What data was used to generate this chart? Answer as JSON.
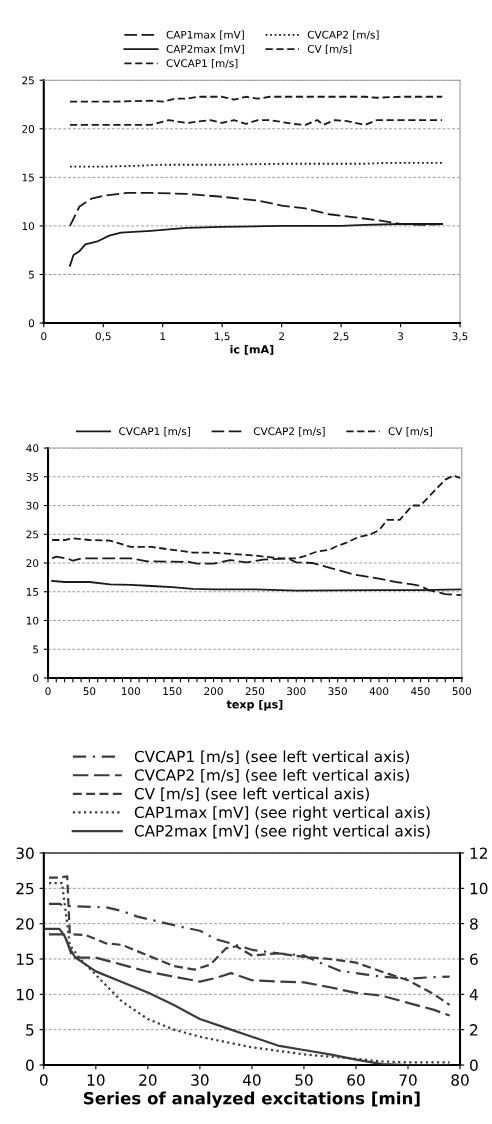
{
  "chart_data": [
    {
      "type": "line",
      "xlabel": "ic [mA]",
      "xlim": [
        0,
        3.5
      ],
      "xticks": [
        0,
        {
          "value": 0.5,
          "label": "0,5"
        },
        1,
        {
          "value": 1.5,
          "label": "1,5"
        },
        2,
        {
          "value": 2.5,
          "label": "2,5"
        },
        3,
        {
          "value": 3.5,
          "label": "3,5"
        }
      ],
      "ylim": [
        0,
        25
      ],
      "yticks": [
        0,
        5,
        10,
        15,
        20,
        25
      ],
      "grid": "y",
      "legend": "top",
      "series": [
        {
          "name": "CAP1max [mV]",
          "color": "#1a1a1a",
          "line_style": "longdash",
          "x": [
            0.22,
            0.3,
            0.4,
            0.5,
            0.7,
            0.9,
            1.2,
            1.5,
            1.8,
            2.0,
            2.2,
            2.4,
            2.6,
            2.8,
            3.0,
            3.2,
            3.35
          ],
          "values": [
            10,
            12,
            12.8,
            13.1,
            13.4,
            13.4,
            13.3,
            13.0,
            12.6,
            12.1,
            11.8,
            11.2,
            10.9,
            10.6,
            10.2,
            10.1,
            10.2
          ]
        },
        {
          "name": "CAP2max [mV]",
          "color": "#1a1a1a",
          "line_style": "solid",
          "x": [
            0.22,
            0.25,
            0.3,
            0.35,
            0.45,
            0.55,
            0.65,
            0.9,
            1.2,
            1.5,
            2.0,
            2.5,
            2.7,
            3.0,
            3.35
          ],
          "values": [
            5.9,
            7,
            7.4,
            8.1,
            8.4,
            9.0,
            9.3,
            9.5,
            9.8,
            9.9,
            10.0,
            10.0,
            10.1,
            10.2,
            10.2
          ]
        },
        {
          "name": "CVCAP1 [m/s]",
          "color": "#1a1a1a",
          "line_style": "dashed",
          "x": [
            0.22,
            0.6,
            0.9,
            1.0,
            1.1,
            1.2,
            1.3,
            1.5,
            1.6,
            1.7,
            1.8,
            1.9,
            2.5,
            2.7,
            2.8,
            3.0,
            3.35
          ],
          "values": [
            22.8,
            22.8,
            22.9,
            22.8,
            23.1,
            23.1,
            23.3,
            23.3,
            23.0,
            23.3,
            23.1,
            23.3,
            23.3,
            23.3,
            23.2,
            23.3,
            23.3
          ]
        },
        {
          "name": "CVCAP2 [m/s]",
          "color": "#1a1a1a",
          "line_style": "dotted",
          "x": [
            0.22,
            0.5,
            0.8,
            1.0,
            1.5,
            2.0,
            2.5,
            2.7,
            2.9,
            3.35
          ],
          "values": [
            16.1,
            16.1,
            16.2,
            16.3,
            16.3,
            16.4,
            16.4,
            16.4,
            16.5,
            16.5
          ]
        },
        {
          "name": "CV [m/s]",
          "color": "#1a1a1a",
          "line_style": "dashed",
          "x": [
            0.22,
            0.7,
            0.9,
            1.05,
            1.2,
            1.4,
            1.5,
            1.6,
            1.7,
            1.8,
            1.9,
            2.1,
            2.2,
            2.3,
            2.35,
            2.45,
            2.55,
            2.7,
            2.8,
            3.2,
            3.35
          ],
          "values": [
            20.4,
            20.4,
            20.4,
            20.9,
            20.6,
            20.9,
            20.6,
            20.9,
            20.5,
            20.9,
            20.9,
            20.5,
            20.4,
            20.9,
            20.4,
            20.9,
            20.8,
            20.4,
            20.9,
            20.9,
            20.9
          ]
        }
      ]
    },
    {
      "type": "line",
      "xlabel": "texp [µs]",
      "xlim": [
        0,
        500
      ],
      "xticks": [
        0,
        {
          "value": 10,
          "label": null
        },
        {
          "value": 20,
          "label": null
        },
        {
          "value": 30,
          "label": null
        },
        {
          "value": 40,
          "label": null
        },
        50,
        {
          "value": 60,
          "label": null
        },
        {
          "value": 70,
          "label": null
        },
        {
          "value": 80,
          "label": null
        },
        {
          "value": 90,
          "label": null
        },
        100,
        {
          "value": 110,
          "label": null
        },
        {
          "value": 120,
          "label": null
        },
        {
          "value": 130,
          "label": null
        },
        {
          "value": 140,
          "label": null
        },
        150,
        {
          "value": 160,
          "label": null
        },
        {
          "value": 170,
          "label": null
        },
        {
          "value": 180,
          "label": null
        },
        {
          "value": 190,
          "label": null
        },
        200,
        {
          "value": 210,
          "label": null
        },
        {
          "value": 220,
          "label": null
        },
        {
          "value": 230,
          "label": null
        },
        {
          "value": 240,
          "label": null
        },
        250,
        {
          "value": 260,
          "label": null
        },
        {
          "value": 270,
          "label": null
        },
        {
          "value": 280,
          "label": null
        },
        {
          "value": 290,
          "label": null
        },
        300,
        {
          "value": 310,
          "label": null
        },
        {
          "value": 320,
          "label": null
        },
        {
          "value": 330,
          "label": null
        },
        {
          "value": 340,
          "label": null
        },
        350,
        {
          "value": 360,
          "label": null
        },
        {
          "value": 370,
          "label": null
        },
        {
          "value": 380,
          "label": null
        },
        {
          "value": 390,
          "label": null
        },
        400,
        {
          "value": 410,
          "label": null
        },
        {
          "value": 420,
          "label": null
        },
        {
          "value": 430,
          "label": null
        },
        {
          "value": 440,
          "label": null
        },
        450,
        {
          "value": 460,
          "label": null
        },
        {
          "value": 470,
          "label": null
        },
        {
          "value": 480,
          "label": null
        },
        {
          "value": 490,
          "label": null
        },
        500
      ],
      "ylim": [
        0,
        40
      ],
      "yticks": [
        0,
        5,
        10,
        15,
        20,
        25,
        30,
        35,
        40
      ],
      "grid": "y",
      "legend": "top",
      "series": [
        {
          "name": "CVCAP1 [m/s]",
          "color": "#1a1a1a",
          "line_style": "solid",
          "x": [
            5,
            20,
            50,
            75,
            100,
            125,
            150,
            175,
            200,
            250,
            300,
            400,
            450,
            500
          ],
          "values": [
            16.9,
            16.7,
            16.7,
            16.3,
            16.2,
            16.0,
            15.8,
            15.5,
            15.4,
            15.4,
            15.2,
            15.3,
            15.3,
            15.4
          ]
        },
        {
          "name": "CVCAP2 [m/s]",
          "color": "#1a1a1a",
          "line_style": "longdash",
          "x": [
            5,
            10,
            25,
            30,
            40,
            100,
            120,
            170,
            180,
            200,
            220,
            240,
            260,
            290,
            300,
            320,
            330,
            345,
            370,
            400,
            420,
            440,
            450,
            460,
            480,
            500
          ],
          "values": [
            20.8,
            21.1,
            20.7,
            20.4,
            20.8,
            20.8,
            20.3,
            20.2,
            19.9,
            19.9,
            20.5,
            20.1,
            20.6,
            20.8,
            20.1,
            20.0,
            19.6,
            19.0,
            18.0,
            17.3,
            16.7,
            16.3,
            16.0,
            15.3,
            14.6,
            14.4
          ]
        },
        {
          "name": "CV [m/s]",
          "color": "#1a1a1a",
          "line_style": "dashed",
          "x": [
            5,
            20,
            30,
            50,
            75,
            100,
            125,
            150,
            175,
            200,
            250,
            280,
            300,
            310,
            325,
            340,
            350,
            360,
            375,
            390,
            400,
            410,
            425,
            440,
            450,
            460,
            470,
            480,
            490,
            498
          ],
          "values": [
            24.0,
            24.0,
            24.3,
            24.0,
            23.9,
            22.8,
            22.8,
            22.3,
            21.8,
            21.8,
            21.3,
            20.8,
            20.8,
            21.2,
            22.0,
            22.3,
            23.0,
            23.5,
            24.5,
            25.0,
            25.7,
            27.5,
            27.5,
            30.0,
            30.0,
            31.5,
            33.0,
            34.5,
            35.2,
            34.8
          ]
        }
      ]
    },
    {
      "type": "line",
      "xlabel": "Series of analyzed excitations [min]",
      "xlim": [
        0,
        80
      ],
      "xticks": [
        0,
        10,
        20,
        30,
        40,
        50,
        60,
        70,
        80
      ],
      "ylim": [
        0,
        30
      ],
      "yticks": [
        0,
        5,
        10,
        15,
        20,
        25,
        30
      ],
      "y2lim": [
        0,
        12
      ],
      "y2ticks": [
        0,
        2,
        4,
        6,
        8,
        10,
        12
      ],
      "grid": "y",
      "legend": "top",
      "series": [
        {
          "name": "CVCAP1 [m/s] (see left vertical axis)",
          "color": "#3c3c3c",
          "line_style": "dashdot",
          "x": [
            1,
            3,
            4,
            12,
            15,
            18,
            22,
            25,
            28,
            30,
            33,
            36,
            40,
            45,
            50,
            53,
            57,
            62,
            65,
            70,
            74,
            78
          ],
          "values": [
            22.8,
            22.8,
            22.5,
            22.3,
            21.8,
            21.0,
            20.3,
            19.8,
            19.3,
            19.0,
            17.8,
            17.2,
            16.3,
            15.8,
            15.5,
            14.5,
            13.3,
            12.8,
            12.5,
            12.2,
            12.4,
            12.5
          ]
        },
        {
          "name": "CVCAP2 [m/s] (see left vertical axis)",
          "color": "#3c3c3c",
          "line_style": "longdash",
          "x": [
            1,
            3,
            4,
            5.5,
            10,
            15,
            20,
            25,
            30,
            33,
            36,
            40,
            45,
            50,
            55,
            60,
            65,
            70,
            75,
            78
          ],
          "values": [
            18.5,
            18.5,
            18.5,
            15.2,
            15.2,
            14.2,
            13.2,
            12.5,
            11.8,
            12.3,
            13.0,
            12.0,
            11.8,
            11.7,
            11.0,
            10.2,
            9.8,
            8.8,
            7.8,
            7.0
          ]
        },
        {
          "name": "CV [m/s] (see left vertical axis)",
          "color": "#3c3c3c",
          "line_style": "dashed",
          "x": [
            1,
            3,
            4.5,
            5,
            8,
            12,
            15,
            20,
            25,
            29,
            32,
            35,
            37,
            40,
            45,
            50,
            55,
            60,
            65,
            70,
            75,
            78
          ],
          "values": [
            26.5,
            26.5,
            26.7,
            18.5,
            18.4,
            17.2,
            17.0,
            15.5,
            14.0,
            13.5,
            14.2,
            16.5,
            16.8,
            15.5,
            15.8,
            15.3,
            15.0,
            14.5,
            13.2,
            12.0,
            10.0,
            8.5
          ]
        },
        {
          "name": "CAP1max [mV] (see right vertical axis)",
          "color": "#3c3c3c",
          "line_style": "dotted",
          "axis": "y2",
          "x": [
            1,
            3,
            3.5,
            4.5,
            5,
            7,
            10,
            15,
            20,
            25,
            30,
            35,
            40,
            50,
            60,
            65,
            70,
            78
          ],
          "values": [
            10.3,
            10.3,
            10.3,
            8.0,
            6.8,
            6.0,
            5.1,
            3.6,
            2.6,
            2.0,
            1.6,
            1.3,
            1.0,
            0.6,
            0.35,
            0.2,
            0.15,
            0.15
          ]
        },
        {
          "name": "CAP2max [mV] (see right vertical axis)",
          "color": "#3c3c3c",
          "line_style": "solid",
          "axis": "y2",
          "x": [
            0,
            3,
            4,
            5,
            6,
            8,
            10,
            15,
            20,
            25,
            30,
            35,
            40,
            45,
            50,
            55,
            60,
            65,
            70,
            78
          ],
          "values": [
            7.7,
            7.7,
            7.3,
            6.6,
            6.1,
            5.7,
            5.3,
            4.7,
            4.1,
            3.4,
            2.6,
            2.1,
            1.6,
            1.1,
            0.85,
            0.6,
            0.3,
            0.05,
            0,
            0
          ]
        }
      ]
    }
  ]
}
